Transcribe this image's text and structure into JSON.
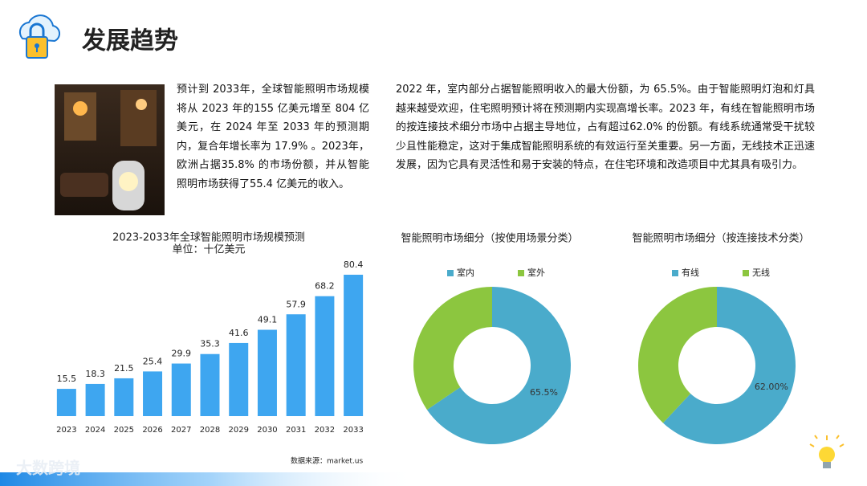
{
  "header": {
    "title": "发展趋势"
  },
  "paragraphs": [
    "预计到 2033年，全球智能照明市场规模将从 2023 年的155 亿美元增至 804 亿美元，在 2024 年至 2033 年的预测期内，复合年增长率为 17.9% 。2023年，欧洲占据35.8% 的市场份额，并从智能照明市场获得了55.4 亿美元的收入。",
    "2022 年，室内部分占据智能照明收入的最大份额，为 65.5%。由于智能照明灯泡和灯具越来越受欢迎，住宅照明预计将在预测期内实现高增长率。2023 年，有线在智能照明市场的按连接技术细分市场中占据主导地位，占有超过62.0% 的份额。有线系统通常受干扰较少且性能稳定，这对于集成智能照明系统的有效运行至关重要。另一方面，无线技术正迅速发展，因为它具有灵活性和易于安装的特点，在住宅环境和改造项目中尤其具有吸引力。"
  ],
  "source": "数据来源：market.us",
  "watermark": "大数跨境",
  "chart_data": [
    {
      "type": "bar",
      "title": "2023-2033年全球智能照明市场规模预测",
      "subtitle": "单位：十亿美元",
      "categories": [
        "2023",
        "2024",
        "2025",
        "2026",
        "2027",
        "2028",
        "2029",
        "2030",
        "2031",
        "2032",
        "2033"
      ],
      "values": [
        15.5,
        18.3,
        21.5,
        25.4,
        29.9,
        35.3,
        41.6,
        49.1,
        57.9,
        68.2,
        80.4
      ],
      "color": "#3ea6f0"
    },
    {
      "type": "pie",
      "title": "智能照明市场细分（按使用场景分类）",
      "categories": [
        "室内",
        "室外"
      ],
      "values": [
        65.5,
        34.5
      ],
      "value_labels": [
        "65.5%",
        null
      ],
      "colors": [
        "#4aabcb",
        "#8cc63f"
      ],
      "legend": "top"
    },
    {
      "type": "pie",
      "title": "智能照明市场细分（按连接技术分类）",
      "categories": [
        "有线",
        "无线"
      ],
      "values": [
        62,
        38
      ],
      "value_labels": [
        "62.00%",
        null
      ],
      "colors": [
        "#4aabcb",
        "#8cc63f"
      ],
      "legend": "top"
    }
  ]
}
